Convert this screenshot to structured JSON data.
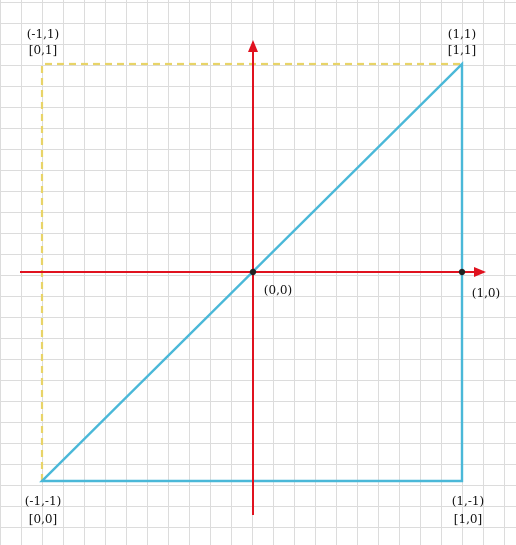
{
  "diagram": {
    "colors": {
      "axis": "#e0121f",
      "shape": "#4ab8d8",
      "dashed": "#e8d468",
      "point": "#222222",
      "grid": "#dcdcdc"
    },
    "labels": {
      "top_left_ndc": "(-1,1)",
      "top_left_uv": "[0,1]",
      "top_right_ndc": "(1,1)",
      "top_right_uv": "[1,1]",
      "origin": "(0,0)",
      "x_unit": "(1,0)",
      "bottom_left_ndc": "(-1,-1)",
      "bottom_left_uv": "[0,0]",
      "bottom_right_ndc": "(1,-1)",
      "bottom_right_uv": "[1,0]"
    }
  }
}
